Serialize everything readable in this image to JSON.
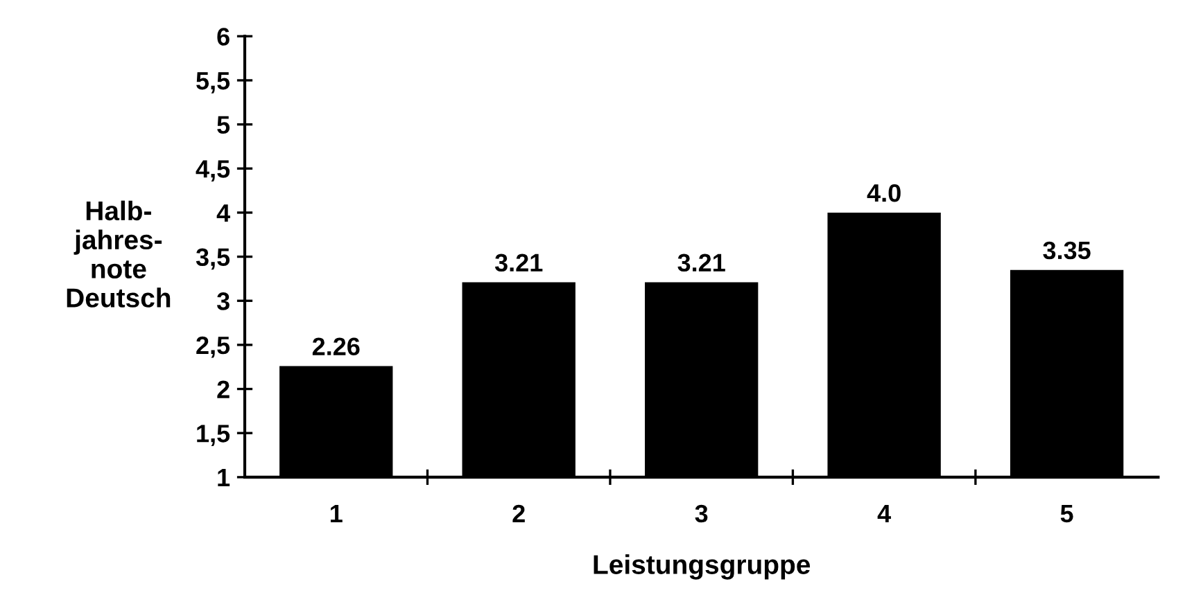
{
  "chart_data": {
    "type": "bar",
    "xlabel": "Leistungsgruppe",
    "ylabel": "Halb-\njahres-\nnote\nDeutsch",
    "categories": [
      "1",
      "2",
      "3",
      "4",
      "5"
    ],
    "values": [
      2.26,
      3.21,
      3.21,
      4.0,
      3.35
    ],
    "value_labels": [
      "2.26",
      "3.21",
      "3.21",
      "4.0",
      "3.35"
    ],
    "color": "#000000",
    "ylim": [
      1,
      6
    ],
    "yticks": [
      1,
      {
        "value": 1.5,
        "label": "1,5"
      },
      2,
      {
        "value": 2.5,
        "label": "2,5"
      },
      3,
      {
        "value": 3.5,
        "label": "3,5"
      },
      4,
      {
        "value": 4.5,
        "label": "4,5"
      },
      5,
      {
        "value": 5.5,
        "label": "5,5"
      },
      6
    ],
    "grid": false
  }
}
